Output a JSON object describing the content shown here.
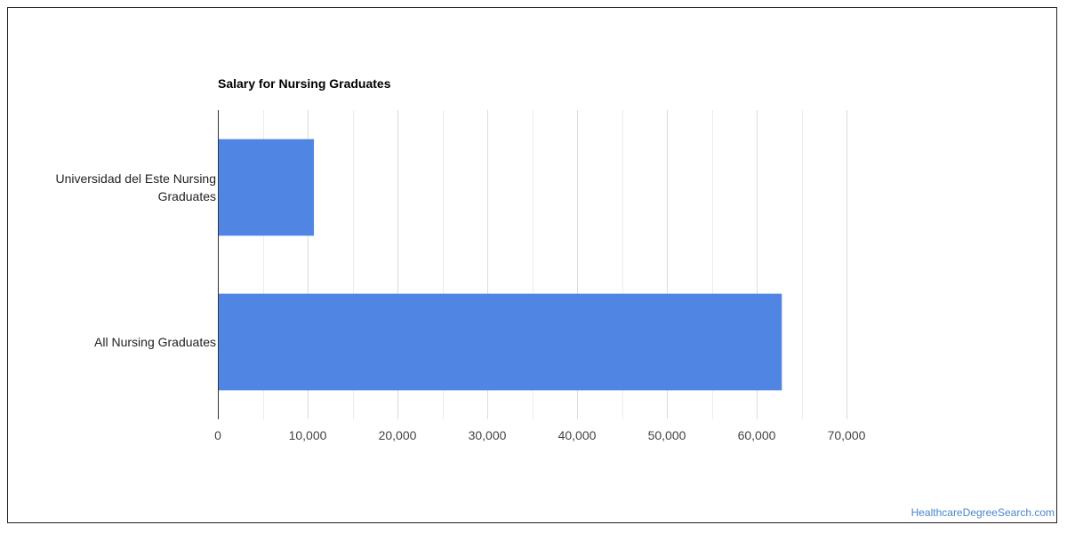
{
  "chart_data": {
    "type": "bar",
    "orientation": "horizontal",
    "title": "Salary for Nursing Graduates",
    "categories": [
      [
        "Universidad del Este Nursing",
        "Graduates"
      ],
      [
        "All Nursing Graduates"
      ]
    ],
    "values": [
      10700,
      62800
    ],
    "xlim": [
      0,
      70000
    ],
    "xticks": [
      0,
      10000,
      20000,
      30000,
      40000,
      50000,
      60000,
      70000
    ],
    "xtick_labels": [
      "0",
      "10,000",
      "20,000",
      "30,000",
      "40,000",
      "50,000",
      "60,000",
      "70,000"
    ],
    "bar_color": "#5085e3",
    "grid": true
  },
  "watermark": "HealthcareDegreeSearch.com"
}
